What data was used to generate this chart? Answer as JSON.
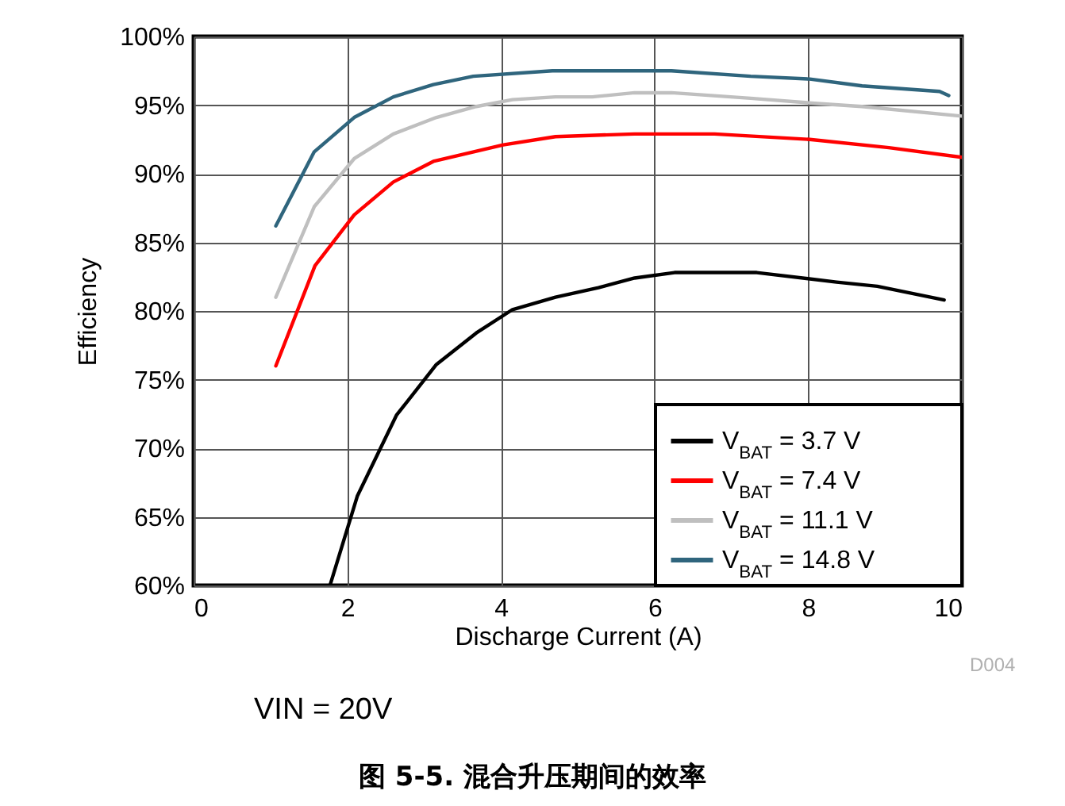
{
  "chart_data": {
    "type": "line",
    "title": "图 5-5. 混合升压期间的效率",
    "xlabel": "Discharge Current (A)",
    "ylabel": "Efficiency",
    "annotations": [
      "D004",
      "VIN = 20V"
    ],
    "xlim": [
      0,
      10
    ],
    "xticks": [
      0,
      2,
      4,
      6,
      8,
      10
    ],
    "ylim": [
      60,
      100
    ],
    "yticks": [
      {
        "value": 60,
        "label": "60%"
      },
      {
        "value": 65,
        "label": "65%"
      },
      {
        "value": 70,
        "label": "70%"
      },
      {
        "value": 75,
        "label": "75%"
      },
      {
        "value": 80,
        "label": "80%"
      },
      {
        "value": 85,
        "label": "85%"
      },
      {
        "value": 90,
        "label": "90%"
      },
      {
        "value": 95,
        "label": "95%"
      },
      {
        "value": 100,
        "label": "100%"
      }
    ],
    "grid": true,
    "legend": "bottom right",
    "line_style": "solid",
    "series": [
      {
        "name": "V$_{BAT}$ = 3.7 V",
        "color": "#000000",
        "x": [
          1.78,
          2.13,
          2.64,
          3.16,
          3.68,
          4.15,
          4.71,
          5.27,
          5.74,
          6.26,
          7.33,
          8.37,
          8.9,
          9.77
        ],
        "values": [
          60.1,
          66.5,
          72.4,
          76.1,
          78.4,
          80.1,
          81.0,
          81.7,
          82.4,
          82.8,
          82.8,
          82.1,
          81.8,
          80.8
        ]
      },
      {
        "name": "V$_{BAT}$ = 7.4 V",
        "color": "#ff0000",
        "x": [
          1.07,
          1.58,
          2.09,
          2.6,
          3.12,
          4.03,
          4.71,
          5.74,
          6.78,
          8.02,
          9.05,
          10.0
        ],
        "values": [
          76.0,
          83.3,
          87.0,
          89.4,
          90.9,
          92.1,
          92.7,
          92.9,
          92.9,
          92.5,
          91.9,
          91.2
        ]
      },
      {
        "name": "V$_{BAT}$ = 11.1 V",
        "color": "#bfbfbf",
        "x": [
          1.07,
          1.57,
          2.09,
          2.6,
          3.16,
          3.68,
          4.15,
          4.71,
          5.19,
          5.74,
          6.22,
          7.25,
          8.16,
          8.7,
          10.0
        ],
        "values": [
          81.0,
          87.6,
          91.1,
          92.9,
          94.1,
          94.9,
          95.4,
          95.6,
          95.6,
          95.9,
          95.9,
          95.5,
          95.1,
          94.9,
          94.2
        ]
      },
      {
        "name": "V$_{BAT}$ = 14.8 V",
        "color": "#2f657d",
        "x": [
          1.07,
          1.57,
          2.09,
          2.6,
          3.12,
          3.64,
          4.67,
          5.19,
          6.22,
          7.25,
          8.02,
          8.7,
          9.71,
          9.83
        ],
        "values": [
          86.2,
          91.6,
          94.1,
          95.6,
          96.5,
          97.1,
          97.5,
          97.5,
          97.5,
          97.1,
          96.9,
          96.4,
          96.0,
          95.7
        ]
      }
    ]
  }
}
